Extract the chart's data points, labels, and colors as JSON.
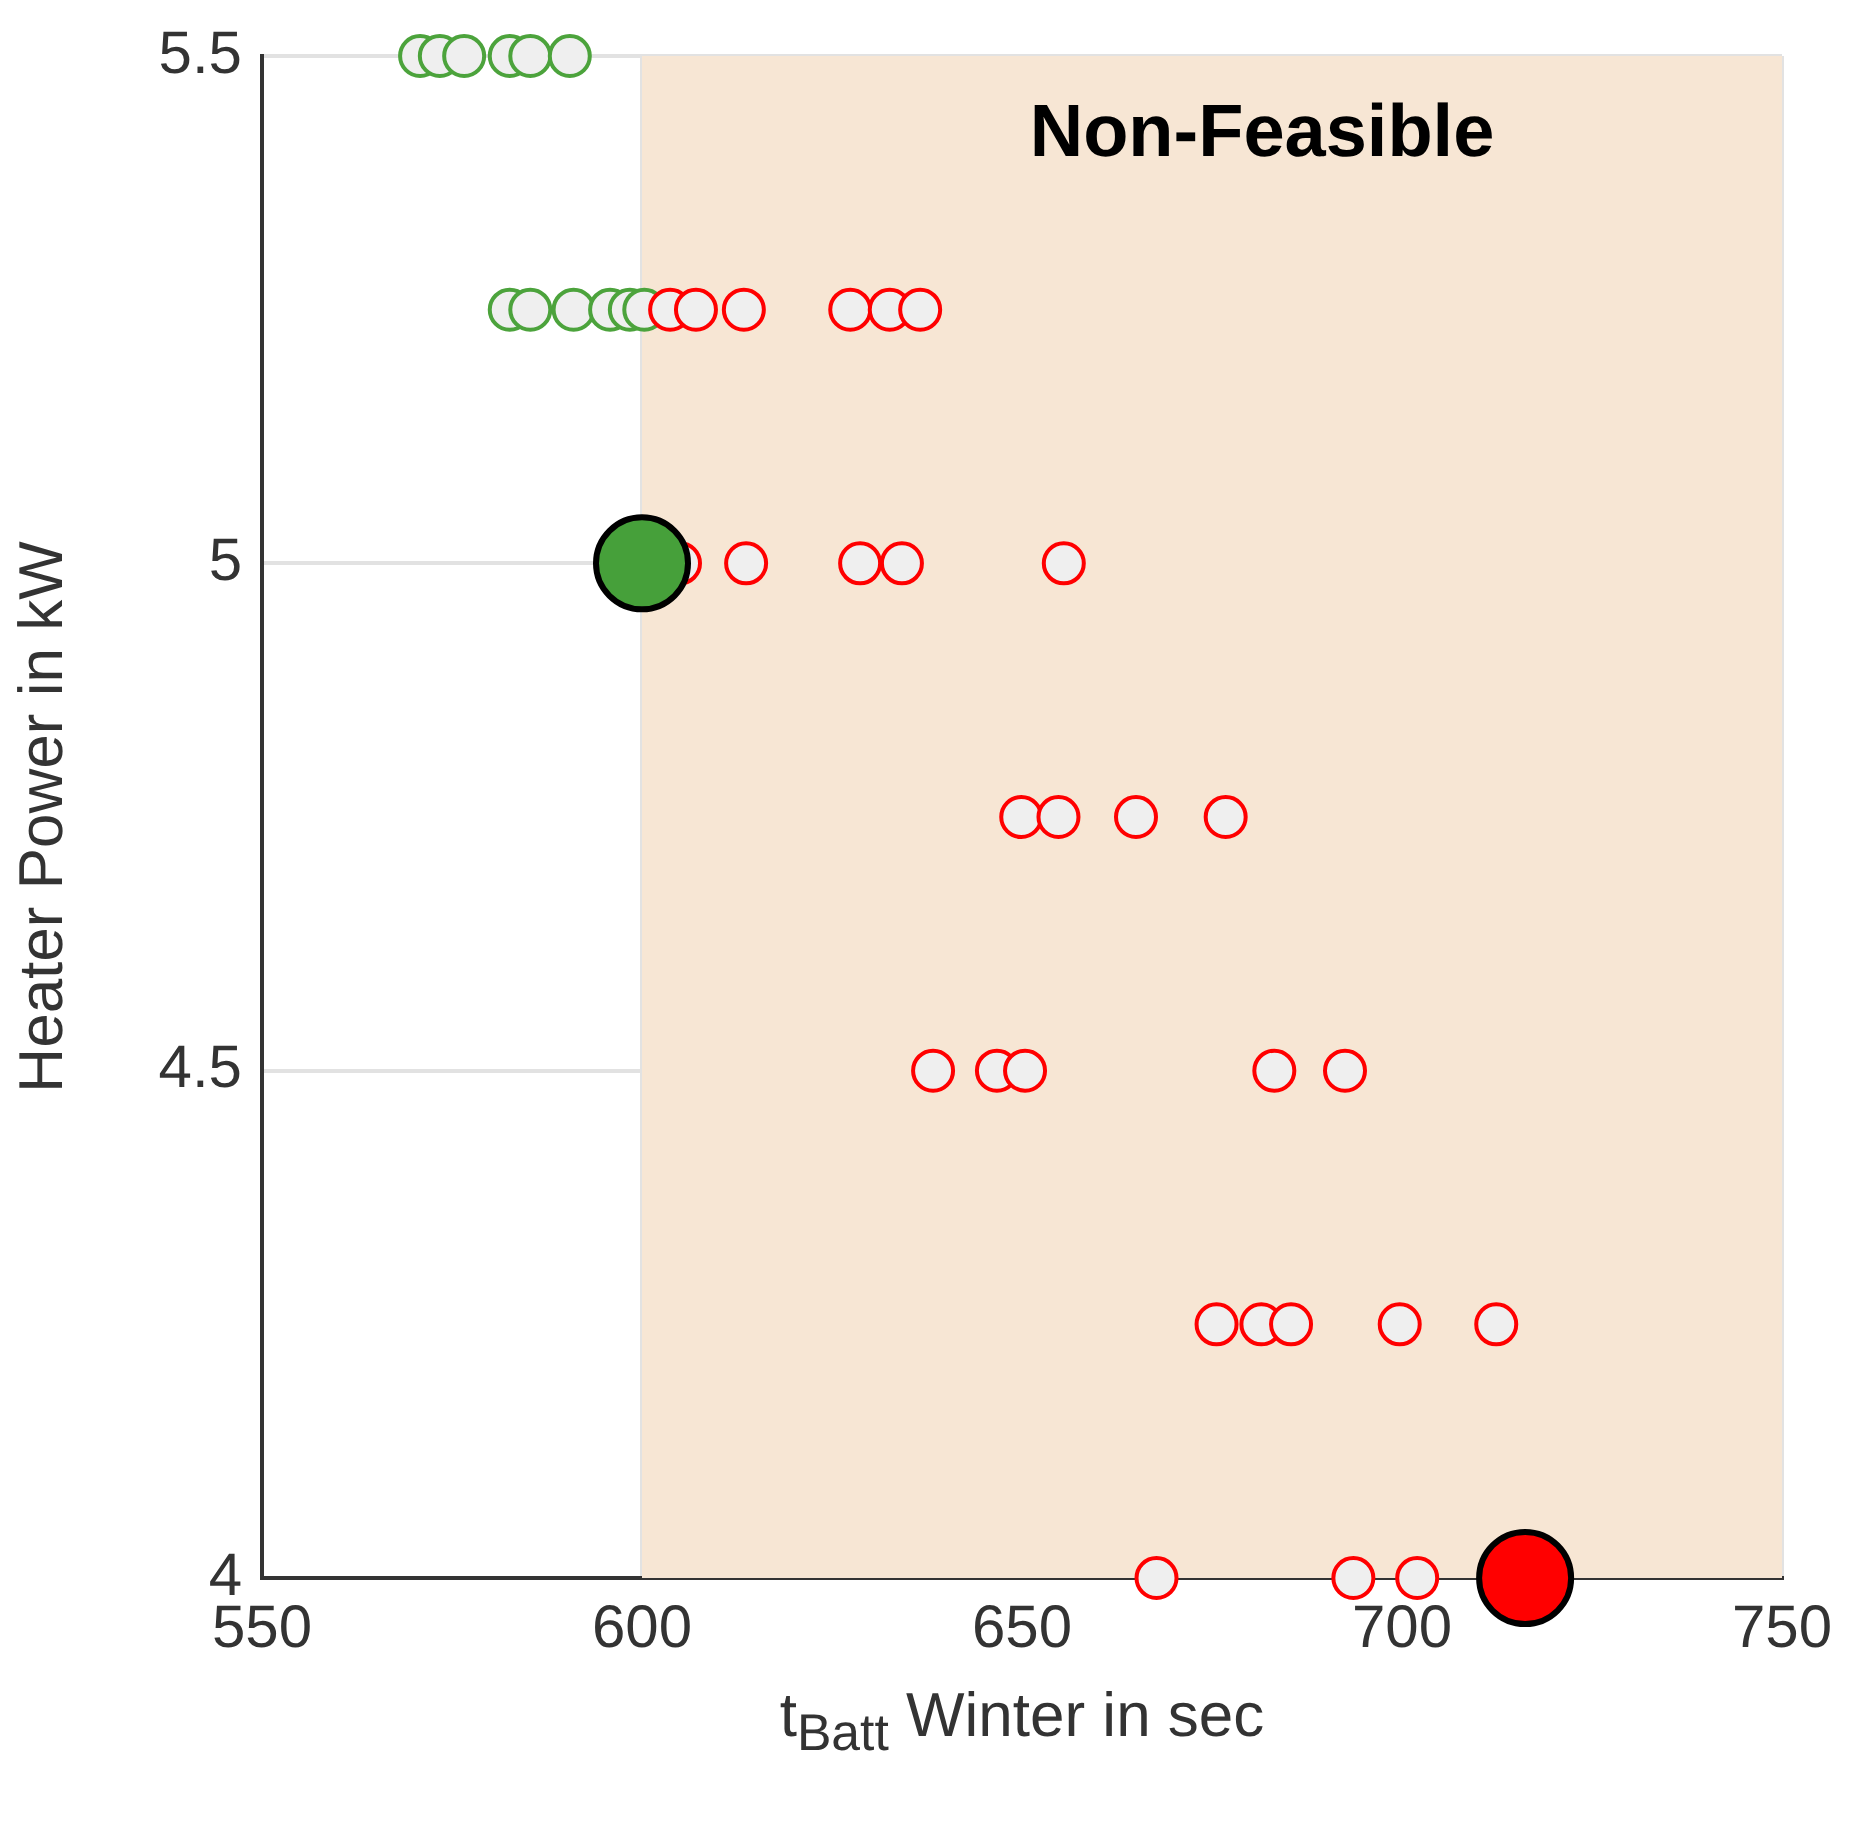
{
  "chart_data": {
    "type": "scatter",
    "xlabel": "t$_{Batt}$ Winter in sec",
    "ylabel": "Heater Power in kW",
    "xlim": [
      550,
      750
    ],
    "xticks": [
      550,
      600,
      650,
      700,
      750
    ],
    "ylim": [
      4,
      5.5
    ],
    "yticks": [
      4,
      4.5,
      5,
      5.5
    ],
    "grid": true,
    "legend": false,
    "bands": [
      {
        "axis": "x",
        "from": 600,
        "to": 750,
        "label": "Non-Feasible",
        "color": "#f7e6d4"
      }
    ],
    "series": [
      {
        "color": "#ff0000",
        "marker": "circle",
        "x": [
          603.7,
          607.1,
          613.4,
          627.4,
          632.6,
          636.6,
          605,
          613.7,
          628.7,
          634.2,
          655.5,
          649.9,
          654.8,
          665,
          676.8,
          638.3,
          646.7,
          650.4,
          683.2,
          692.5,
          675.6,
          681.5,
          685.4,
          699.7,
          712.4,
          667.7,
          693.6,
          702
        ],
        "values": [
          5.25,
          5.25,
          5.25,
          5.25,
          5.25,
          5.25,
          5,
          5,
          5,
          5,
          5,
          4.75,
          4.75,
          4.75,
          4.75,
          4.5,
          4.5,
          4.5,
          4.5,
          4.5,
          4.25,
          4.25,
          4.25,
          4.25,
          4.25,
          4,
          4,
          4
        ]
      },
      {
        "color": "#4ca33c",
        "marker": "circle",
        "x": [
          570.8,
          573.4,
          576.6,
          582.6,
          585.3,
          590.5,
          582.6,
          585.3,
          591,
          595.8,
          598.4,
          600.3
        ],
        "values": [
          5.5,
          5.5,
          5.5,
          5.5,
          5.5,
          5.5,
          5.25,
          5.25,
          5.25,
          5.25,
          5.25,
          5.25
        ]
      },
      {
        "type": "bubble",
        "color": "#46a03a",
        "x": [
          600
        ],
        "values": [
          5
        ],
        "sizes": [
          1
        ]
      },
      {
        "type": "bubble",
        "color": "#ff0000",
        "x": [
          716.2
        ],
        "values": [
          4
        ],
        "sizes": [
          1
        ]
      }
    ]
  }
}
